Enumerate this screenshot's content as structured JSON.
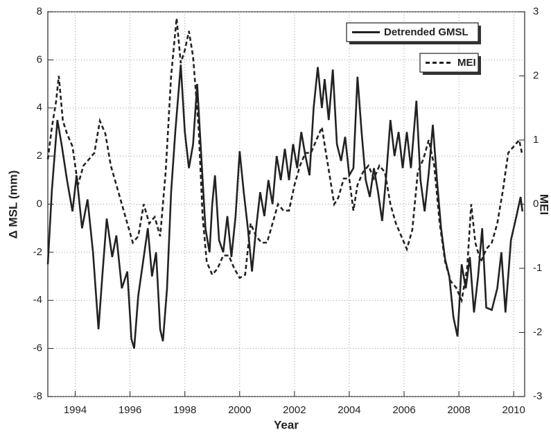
{
  "chart_data": {
    "type": "line",
    "xlabel": "Year",
    "ylabel": "Δ MSL (mm)",
    "y2label": "MEI",
    "xlim": [
      1993,
      2010.4
    ],
    "xticks": [
      1994,
      1996,
      1998,
      2000,
      2002,
      2004,
      2006,
      2008,
      2010
    ],
    "ylim": [
      -8,
      8
    ],
    "yticks": [
      -8,
      -6,
      -4,
      -2,
      0,
      2,
      4,
      6,
      8
    ],
    "y2lim": [
      -3,
      3
    ],
    "y2ticks": [
      -3,
      -2,
      -1,
      0,
      1,
      2,
      3
    ],
    "grid": true,
    "legend": "upper right",
    "series": [
      {
        "name": "Detrended GMSL",
        "color": "#222222",
        "style": "solid",
        "axis": "y",
        "x": [
          1993.0,
          1993.15,
          1993.35,
          1993.5,
          1993.7,
          1993.9,
          1994.05,
          1994.25,
          1994.45,
          1994.65,
          1994.85,
          1995.0,
          1995.15,
          1995.35,
          1995.5,
          1995.7,
          1995.9,
          1996.05,
          1996.15,
          1996.3,
          1996.5,
          1996.65,
          1996.8,
          1996.95,
          1997.1,
          1997.2,
          1997.35,
          1997.5,
          1997.65,
          1997.85,
          1998.0,
          1998.15,
          1998.3,
          1998.45,
          1998.6,
          1998.75,
          1998.9,
          1999.0,
          1999.1,
          1999.25,
          1999.4,
          1999.55,
          1999.7,
          1999.85,
          2000.0,
          2000.15,
          2000.3,
          2000.45,
          2000.6,
          2000.75,
          2000.9,
          2001.05,
          2001.2,
          2001.35,
          2001.5,
          2001.65,
          2001.8,
          2001.95,
          2002.1,
          2002.25,
          2002.4,
          2002.55,
          2002.7,
          2002.85,
          2003.0,
          2003.1,
          2003.25,
          2003.4,
          2003.55,
          2003.7,
          2003.85,
          2004.0,
          2004.15,
          2004.3,
          2004.45,
          2004.6,
          2004.75,
          2004.9,
          2005.05,
          2005.2,
          2005.35,
          2005.5,
          2005.65,
          2005.8,
          2005.95,
          2006.1,
          2006.25,
          2006.45,
          2006.6,
          2006.75,
          2006.9,
          2007.05,
          2007.2,
          2007.35,
          2007.5,
          2007.65,
          2007.8,
          2007.95,
          2008.1,
          2008.25,
          2008.4,
          2008.55,
          2008.7,
          2008.85,
          2009.0,
          2009.2,
          2009.4,
          2009.55,
          2009.7,
          2009.9,
          2010.1,
          2010.25,
          2010.32
        ],
        "values": [
          -2.5,
          0.6,
          3.5,
          2.5,
          1.0,
          -0.3,
          1.2,
          -1.0,
          0.2,
          -2.0,
          -5.2,
          -2.8,
          -0.6,
          -2.2,
          -1.3,
          -3.5,
          -2.8,
          -5.6,
          -6.0,
          -3.8,
          -2.2,
          -1.0,
          -3.0,
          -2.0,
          -5.2,
          -5.7,
          -3.5,
          0.5,
          3.0,
          5.8,
          3.0,
          1.5,
          2.5,
          5.0,
          2.0,
          -1.0,
          -2.0,
          0.0,
          1.2,
          -1.5,
          -2.0,
          -0.5,
          -2.2,
          -0.5,
          2.2,
          0.5,
          -1.0,
          -2.8,
          -1.0,
          0.5,
          -0.5,
          1.0,
          0.0,
          2.0,
          1.0,
          2.3,
          1.0,
          2.5,
          1.5,
          3.0,
          2.0,
          1.2,
          4.0,
          5.7,
          4.0,
          5.2,
          3.5,
          5.6,
          2.5,
          1.8,
          2.8,
          1.2,
          1.5,
          5.3,
          3.0,
          1.0,
          0.3,
          1.5,
          0.5,
          -0.7,
          1.2,
          3.5,
          2.0,
          3.0,
          1.5,
          3.0,
          1.5,
          4.3,
          1.0,
          -0.3,
          1.3,
          3.3,
          1.0,
          -1.0,
          -2.3,
          -3.0,
          -4.7,
          -5.5,
          -2.5,
          -3.5,
          -2.2,
          -4.5,
          -3.0,
          -1.0,
          -4.3,
          -4.4,
          -3.5,
          -2.0,
          -4.5,
          -1.5,
          -0.5,
          0.3,
          -0.3
        ]
      },
      {
        "name": "MEI",
        "color": "#222222",
        "style": "dashed",
        "axis": "y2",
        "x": [
          1993.0,
          1993.15,
          1993.3,
          1993.4,
          1993.55,
          1993.7,
          1993.9,
          1994.1,
          1994.3,
          1994.5,
          1994.7,
          1994.9,
          1995.1,
          1995.3,
          1995.5,
          1995.7,
          1995.9,
          1996.1,
          1996.3,
          1996.5,
          1996.7,
          1996.9,
          1997.1,
          1997.3,
          1997.5,
          1997.7,
          1997.85,
          1998.0,
          1998.15,
          1998.3,
          1998.5,
          1998.65,
          1998.8,
          1999.0,
          1999.2,
          1999.4,
          1999.6,
          1999.8,
          2000.0,
          2000.2,
          2000.4,
          2000.6,
          2000.8,
          2001.0,
          2001.2,
          2001.4,
          2001.6,
          2001.8,
          2002.0,
          2002.2,
          2002.4,
          2002.6,
          2002.8,
          2003.0,
          2003.15,
          2003.3,
          2003.45,
          2003.6,
          2003.8,
          2004.0,
          2004.15,
          2004.3,
          2004.5,
          2004.7,
          2004.9,
          2005.1,
          2005.3,
          2005.5,
          2005.7,
          2005.9,
          2006.1,
          2006.3,
          2006.5,
          2006.7,
          2006.9,
          2007.1,
          2007.3,
          2007.5,
          2007.7,
          2007.9,
          2008.1,
          2008.3,
          2008.45,
          2008.6,
          2008.8,
          2009.0,
          2009.2,
          2009.4,
          2009.6,
          2009.8,
          2010.0,
          2010.2,
          2010.3
        ],
        "values": [
          0.7,
          1.2,
          1.6,
          2.0,
          1.3,
          1.1,
          0.9,
          0.3,
          0.6,
          0.7,
          0.8,
          1.3,
          1.1,
          0.6,
          0.3,
          0.0,
          -0.3,
          -0.6,
          -0.5,
          0.0,
          -0.3,
          -0.2,
          -0.5,
          0.5,
          2.0,
          2.9,
          2.2,
          2.4,
          2.7,
          2.3,
          1.2,
          -0.2,
          -0.9,
          -1.1,
          -1.0,
          -0.8,
          -0.8,
          -1.0,
          -1.15,
          -1.1,
          -0.3,
          -0.5,
          -0.6,
          -0.6,
          -0.3,
          0.0,
          -0.1,
          -0.1,
          0.3,
          0.6,
          0.8,
          0.8,
          1.0,
          1.2,
          0.8,
          0.4,
          0.0,
          0.1,
          0.4,
          0.4,
          -0.1,
          0.3,
          0.5,
          0.6,
          0.4,
          0.6,
          0.5,
          0.0,
          -0.3,
          -0.5,
          -0.7,
          -0.4,
          0.5,
          0.7,
          1.0,
          0.6,
          -0.3,
          -0.9,
          -1.2,
          -1.3,
          -1.5,
          -1.0,
          0.0,
          -0.6,
          -0.9,
          -0.7,
          -0.6,
          -0.3,
          0.2,
          0.8,
          0.9,
          1.0,
          0.8
        ]
      }
    ]
  }
}
